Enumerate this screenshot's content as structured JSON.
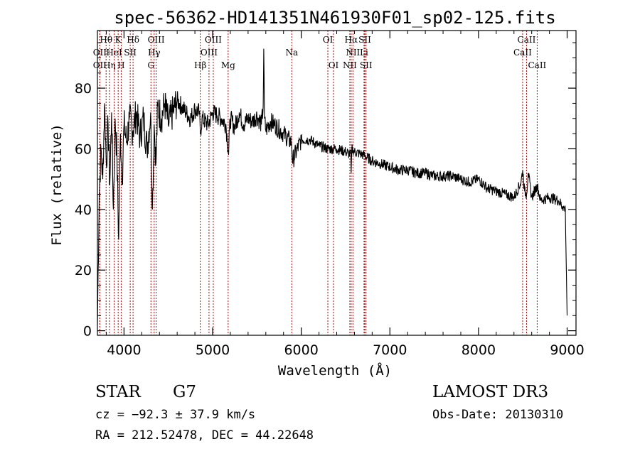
{
  "chart_data": {
    "type": "line",
    "title": "spec-56362-HD141351N461930F01_sp02-125.fits",
    "xlabel": "Wavelength (Å)",
    "ylabel": "Flux (relative)",
    "xlim": [
      3700,
      9100
    ],
    "ylim": [
      -1.5,
      99
    ],
    "xticks": [
      4000,
      5000,
      6000,
      7000,
      8000,
      9000
    ],
    "yticks": [
      0,
      20,
      40,
      60,
      80
    ],
    "series": [
      {
        "name": "flux",
        "x": [
          3700,
          3720,
          3740,
          3760,
          3780,
          3800,
          3820,
          3840,
          3860,
          3880,
          3900,
          3920,
          3940,
          3960,
          3980,
          4000,
          4030,
          4060,
          4100,
          4140,
          4180,
          4220,
          4260,
          4300,
          4320,
          4340,
          4360,
          4380,
          4420,
          4460,
          4500,
          4550,
          4600,
          4650,
          4700,
          4750,
          4800,
          4850,
          4861,
          4880,
          4950,
          5000,
          5050,
          5100,
          5150,
          5180,
          5190,
          5200,
          5250,
          5300,
          5350,
          5400,
          5450,
          5500,
          5550,
          5570,
          5577,
          5585,
          5600,
          5650,
          5700,
          5800,
          5890,
          5900,
          6000,
          6100,
          6200,
          6300,
          6400,
          6500,
          6560,
          6563,
          6570,
          6600,
          6700,
          6800,
          6900,
          7000,
          7100,
          7200,
          7300,
          7400,
          7500,
          7600,
          7700,
          7800,
          7900,
          8000,
          8100,
          8200,
          8300,
          8400,
          8480,
          8498,
          8520,
          8542,
          8560,
          8600,
          8662,
          8700,
          8800,
          8900,
          8950,
          8980,
          9000
        ],
        "y": [
          2,
          45,
          60,
          50,
          75,
          55,
          68,
          48,
          72,
          40,
          70,
          58,
          30,
          65,
          50,
          68,
          62,
          70,
          66,
          72,
          64,
          70,
          60,
          72,
          40,
          68,
          55,
          74,
          70,
          75,
          68,
          72,
          76,
          74,
          72,
          70,
          73,
          72,
          65,
          70,
          68,
          72,
          71,
          70,
          68,
          58,
          66,
          70,
          67,
          72,
          68,
          70,
          69,
          71,
          68,
          74,
          93,
          70,
          66,
          69,
          68,
          65,
          62,
          56,
          63,
          63,
          61,
          60,
          60,
          59,
          58,
          52,
          60,
          59,
          58,
          56,
          55,
          54,
          53,
          53,
          52,
          52,
          51,
          51,
          51,
          50,
          49,
          50,
          47,
          46,
          45,
          44,
          49,
          53,
          46,
          45,
          52,
          44,
          48,
          43,
          44,
          43,
          41,
          40,
          5
        ]
      }
    ],
    "lines": [
      {
        "label": "Hθ",
        "wl": 3798,
        "row": 0
      },
      {
        "label": "K",
        "wl": 3934,
        "row": 0
      },
      {
        "label": "Hδ",
        "wl": 4102,
        "row": 0
      },
      {
        "label": "OIII",
        "wl": 4363,
        "row": 0
      },
      {
        "label": "OIII",
        "wl": 5007,
        "row": 0
      },
      {
        "label": "OI",
        "wl": 6300,
        "row": 0
      },
      {
        "label": "Hα",
        "wl": 6563,
        "row": 0
      },
      {
        "label": "SII",
        "wl": 6717,
        "row": 0
      },
      {
        "label": "CaII",
        "wl": 8542,
        "row": 0
      },
      {
        "label": "OII",
        "wl": 3727,
        "row": 1
      },
      {
        "label": "HeI",
        "wl": 3889,
        "row": 1
      },
      {
        "label": "SII",
        "wl": 4070,
        "row": 1
      },
      {
        "label": "Hγ",
        "wl": 4340,
        "row": 1
      },
      {
        "label": "OIII",
        "wl": 4959,
        "row": 1
      },
      {
        "label": "Na",
        "wl": 5893,
        "row": 1
      },
      {
        "label": "NII",
        "wl": 6583,
        "row": 1
      },
      {
        "label": "Li",
        "wl": 6708,
        "row": 1
      },
      {
        "label": "CaII",
        "wl": 8498,
        "row": 1
      },
      {
        "label": "OII",
        "wl": 3727,
        "row": 2
      },
      {
        "label": "Hη",
        "wl": 3835,
        "row": 2
      },
      {
        "label": "H",
        "wl": 3968,
        "row": 2
      },
      {
        "label": "G",
        "wl": 4304,
        "row": 2
      },
      {
        "label": "Hβ",
        "wl": 4861,
        "row": 2
      },
      {
        "label": "Mg",
        "wl": 5175,
        "row": 2
      },
      {
        "label": "OI",
        "wl": 6364,
        "row": 2
      },
      {
        "label": "NII",
        "wl": 6548,
        "row": 2
      },
      {
        "label": "SII",
        "wl": 6731,
        "row": 2
      },
      {
        "label": "CaII",
        "wl": 8662,
        "row": 2
      }
    ]
  },
  "info": {
    "object_type": "STAR",
    "subclass": "G7",
    "survey": "LAMOST DR3",
    "redshift": "cz = −92.3 ± 37.9 km/s",
    "obs_date": "Obs-Date: 20130310",
    "coords": "RA = 212.52478, DEC =  44.22648"
  },
  "colors": {
    "axis": "#000000",
    "spectrum": "#000000",
    "line_marker": "#c00000"
  }
}
